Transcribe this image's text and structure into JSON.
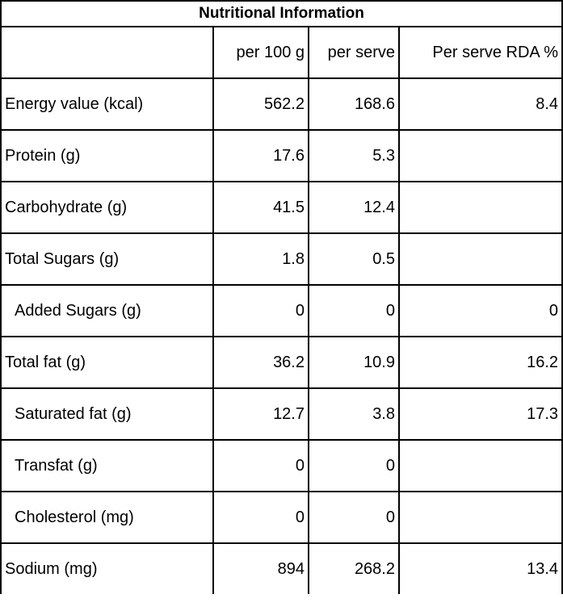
{
  "table": {
    "title": "Nutritional Information",
    "headers": [
      "",
      "per 100 g",
      "per serve",
      "Per serve RDA %"
    ],
    "rows": [
      {
        "label": "Energy value  (kcal)",
        "per_100g": "562.2",
        "per_serve": "168.6",
        "rda": "8.4",
        "indent": false
      },
      {
        "label": "Protein (g)",
        "per_100g": "17.6",
        "per_serve": "5.3",
        "rda": "",
        "indent": false
      },
      {
        "label": "Carbohydrate (g)",
        "per_100g": "41.5",
        "per_serve": "12.4",
        "rda": "",
        "indent": false
      },
      {
        "label": "Total Sugars (g)",
        "per_100g": "1.8",
        "per_serve": "0.5",
        "rda": "",
        "indent": false
      },
      {
        "label": "Added Sugars (g)",
        "per_100g": "0",
        "per_serve": "0",
        "rda": "0",
        "indent": true
      },
      {
        "label": "Total fat (g)",
        "per_100g": "36.2",
        "per_serve": "10.9",
        "rda": "16.2",
        "indent": false
      },
      {
        "label": "Saturated fat (g)",
        "per_100g": "12.7",
        "per_serve": "3.8",
        "rda": "17.3",
        "indent": true
      },
      {
        "label": "Transfat (g)",
        "per_100g": "0",
        "per_serve": "0",
        "rda": "",
        "indent": true
      },
      {
        "label": "Cholesterol (mg)",
        "per_100g": "0",
        "per_serve": "0",
        "rda": "",
        "indent": true
      },
      {
        "label": "Sodium (mg)",
        "per_100g": "894",
        "per_serve": "268.2",
        "rda": "13.4",
        "indent": false
      }
    ]
  }
}
